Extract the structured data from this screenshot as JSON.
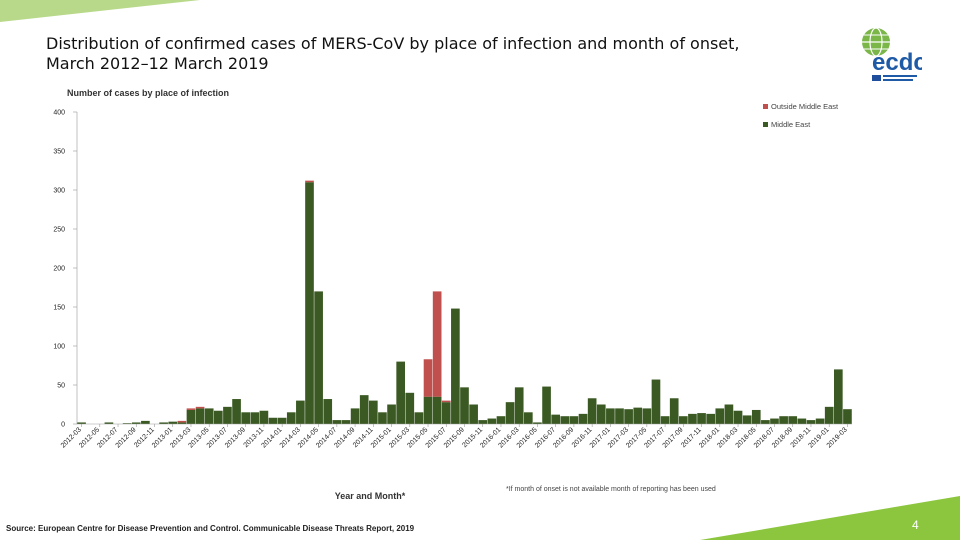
{
  "slide": {
    "title_line1": "Distribution of confirmed cases of MERS-CoV by place of infection and month of onset,",
    "title_line2": "March 2012–12 March 2019",
    "logo_text": "ecdc",
    "source": "Source: European Centre for Disease Prevention and Control. Communicable Disease Threats Report, 2019",
    "page_number": "4",
    "accent_color": "#8cc63f",
    "bar_color_middle_east": "#3b5a23",
    "bar_color_outside": "#c0504d"
  },
  "chart_data": {
    "type": "bar",
    "stacked": true,
    "title": "Number of cases by place of infection",
    "xlabel": "Year and Month*",
    "ylabel": "Number of cases by place of infection",
    "ylim": [
      0,
      400
    ],
    "yticks": [
      0,
      50,
      100,
      150,
      200,
      250,
      300,
      350,
      400
    ],
    "footnote": "*If month of onset is not available month of reporting has been used",
    "legend": [
      "Outside Middle East",
      "Middle East"
    ],
    "categories": [
      "2012-03",
      "2012-04",
      "2012-05",
      "2012-06",
      "2012-07",
      "2012-08",
      "2012-09",
      "2012-10",
      "2012-11",
      "2012-12",
      "2013-01",
      "2013-02",
      "2013-03",
      "2013-04",
      "2013-05",
      "2013-06",
      "2013-07",
      "2013-08",
      "2013-09",
      "2013-10",
      "2013-11",
      "2013-12",
      "2014-01",
      "2014-02",
      "2014-03",
      "2014-04",
      "2014-05",
      "2014-06",
      "2014-07",
      "2014-08",
      "2014-09",
      "2014-10",
      "2014-11",
      "2014-12",
      "2015-01",
      "2015-02",
      "2015-03",
      "2015-04",
      "2015-05",
      "2015-06",
      "2015-07",
      "2015-08",
      "2015-09",
      "2015-10",
      "2015-11",
      "2015-12",
      "2016-01",
      "2016-02",
      "2016-03",
      "2016-04",
      "2016-05",
      "2016-06",
      "2016-07",
      "2016-08",
      "2016-09",
      "2016-10",
      "2016-11",
      "2016-12",
      "2017-01",
      "2017-02",
      "2017-03",
      "2017-04",
      "2017-05",
      "2017-06",
      "2017-07",
      "2017-08",
      "2017-09",
      "2017-10",
      "2017-11",
      "2017-12",
      "2018-01",
      "2018-02",
      "2018-03",
      "2018-04",
      "2018-05",
      "2018-06",
      "2018-07",
      "2018-08",
      "2018-09",
      "2018-10",
      "2018-11",
      "2018-12",
      "2019-01",
      "2019-02",
      "2019-03"
    ],
    "tick_labels": [
      "2012-03",
      "2012-05",
      "2012-07",
      "2012-09",
      "2012-11",
      "2013-01",
      "2013-03",
      "2013-05",
      "2013-07",
      "2013-09",
      "2013-11",
      "2014-01",
      "2014-03",
      "2014-05",
      "2014-07",
      "2014-09",
      "2014-11",
      "2015-01",
      "2015-03",
      "2015-05",
      "2015-07",
      "2015-09",
      "2015-11",
      "2016-01",
      "2016-03",
      "2016-05",
      "2016-07",
      "2016-09",
      "2016-11",
      "2017-01",
      "2017-03",
      "2017-05",
      "2017-07",
      "2017-09",
      "2017-11",
      "2018-01",
      "2018-03",
      "2018-05",
      "2018-07",
      "2018-09",
      "2018-11",
      "2019-01",
      "2019-03"
    ],
    "series": [
      {
        "name": "Middle East",
        "values": [
          2,
          0,
          0,
          2,
          0,
          1,
          2,
          4,
          0,
          2,
          3,
          2,
          18,
          20,
          20,
          17,
          22,
          32,
          15,
          15,
          17,
          8,
          8,
          15,
          30,
          310,
          170,
          32,
          5,
          5,
          20,
          37,
          30,
          15,
          25,
          80,
          40,
          15,
          35,
          35,
          28,
          148,
          47,
          25,
          5,
          7,
          10,
          28,
          47,
          15,
          2,
          48,
          12,
          10,
          10,
          13,
          33,
          25,
          20,
          20,
          19,
          21,
          20,
          57,
          10,
          33,
          10,
          13,
          14,
          13,
          20,
          25,
          17,
          11,
          18,
          5,
          7,
          10,
          10,
          7,
          5,
          7,
          22,
          70,
          19
        ]
      },
      {
        "name": "Outside Middle East",
        "values": [
          0,
          0,
          0,
          0,
          0,
          0,
          0,
          0,
          0,
          0,
          0,
          2,
          2,
          2,
          0,
          0,
          0,
          0,
          0,
          0,
          0,
          0,
          0,
          0,
          0,
          2,
          0,
          0,
          0,
          0,
          0,
          0,
          0,
          0,
          0,
          0,
          0,
          0,
          48,
          135,
          2,
          0,
          0,
          0,
          0,
          0,
          0,
          0,
          0,
          0,
          0,
          0,
          0,
          0,
          0,
          0,
          0,
          0,
          0,
          0,
          0,
          0,
          0,
          0,
          0,
          0,
          0,
          0,
          0,
          0,
          0,
          0,
          0,
          0,
          0,
          0,
          0,
          0,
          0,
          0,
          0,
          0,
          0,
          0,
          0
        ]
      }
    ]
  }
}
